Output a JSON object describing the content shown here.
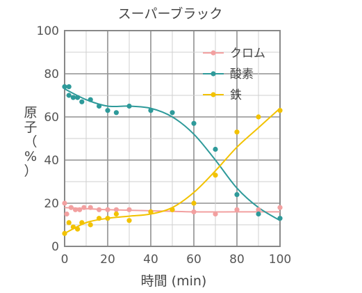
{
  "chart_data": {
    "type": "scatter",
    "title": "スーパーブラック",
    "xlabel": "時間 (min)",
    "ylabel_chars": [
      "原",
      "子",
      "（",
      "%",
      "）"
    ],
    "xlim": [
      0,
      100
    ],
    "ylim": [
      0,
      100
    ],
    "x_ticks": [
      "0",
      "20",
      "40",
      "60",
      "80",
      "100"
    ],
    "y_ticks": [
      "0",
      "20",
      "40",
      "60",
      "80",
      "100"
    ],
    "grid": true,
    "legend_position": "top-right",
    "series": [
      {
        "name": "クロム",
        "color": "#f2a0a0",
        "points": [
          [
            0,
            20
          ],
          [
            1,
            15
          ],
          [
            3,
            18
          ],
          [
            5,
            17
          ],
          [
            7,
            17
          ],
          [
            9,
            18
          ],
          [
            12,
            18
          ],
          [
            16,
            17
          ],
          [
            20,
            17
          ],
          [
            24,
            17
          ],
          [
            30,
            17
          ],
          [
            40,
            16
          ],
          [
            50,
            17
          ],
          [
            60,
            16
          ],
          [
            70,
            15
          ],
          [
            80,
            17
          ],
          [
            90,
            17
          ],
          [
            100,
            18
          ]
        ],
        "curve": [
          [
            0,
            18
          ],
          [
            20,
            17
          ],
          [
            40,
            16.5
          ],
          [
            60,
            16
          ],
          [
            80,
            16
          ],
          [
            100,
            16
          ]
        ]
      },
      {
        "name": "酸素",
        "color": "#2e9a9a",
        "points": [
          [
            0,
            74
          ],
          [
            2,
            74
          ],
          [
            2,
            70
          ],
          [
            4,
            69
          ],
          [
            6,
            69
          ],
          [
            8,
            67
          ],
          [
            12,
            68
          ],
          [
            16,
            65
          ],
          [
            20,
            63
          ],
          [
            24,
            62
          ],
          [
            30,
            65
          ],
          [
            40,
            63
          ],
          [
            50,
            62
          ],
          [
            60,
            57
          ],
          [
            70,
            45
          ],
          [
            80,
            24
          ],
          [
            90,
            15
          ],
          [
            100,
            13
          ]
        ],
        "curve": [
          [
            0,
            73
          ],
          [
            10,
            68
          ],
          [
            20,
            65
          ],
          [
            30,
            65
          ],
          [
            40,
            64
          ],
          [
            50,
            60
          ],
          [
            60,
            52
          ],
          [
            70,
            40
          ],
          [
            80,
            27
          ],
          [
            90,
            18
          ],
          [
            100,
            12
          ]
        ]
      },
      {
        "name": "鉄",
        "color": "#f2c200",
        "points": [
          [
            0,
            6
          ],
          [
            2,
            11
          ],
          [
            4,
            9
          ],
          [
            6,
            8
          ],
          [
            8,
            11
          ],
          [
            12,
            10
          ],
          [
            16,
            13
          ],
          [
            20,
            13
          ],
          [
            24,
            15
          ],
          [
            30,
            12
          ],
          [
            40,
            16
          ],
          [
            50,
            17
          ],
          [
            60,
            20
          ],
          [
            70,
            33
          ],
          [
            80,
            53
          ],
          [
            90,
            60
          ],
          [
            100,
            63
          ]
        ],
        "curve": [
          [
            0,
            6
          ],
          [
            10,
            11
          ],
          [
            20,
            13
          ],
          [
            30,
            14
          ],
          [
            40,
            15
          ],
          [
            50,
            18
          ],
          [
            60,
            25
          ],
          [
            70,
            35
          ],
          [
            80,
            46
          ],
          [
            90,
            55
          ],
          [
            100,
            64
          ]
        ]
      }
    ]
  }
}
